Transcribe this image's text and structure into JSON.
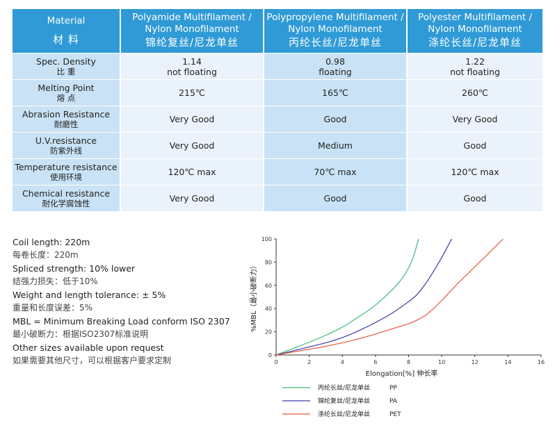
{
  "table": {
    "headers": [
      {
        "en": "Material",
        "cn": "材 料"
      },
      {
        "en": "Polyamide Multifilament / Nylon Monofilament",
        "cn": "锦纶复丝/尼龙单丝"
      },
      {
        "en": "Polypropylene  Multifilament / Nylon Monofilament",
        "cn": "丙纶长丝/尼龙单丝"
      },
      {
        "en": "Polyester Multifilament / Nylon Monofilament",
        "cn": "涤纶长丝/尼龙单丝"
      }
    ],
    "rows": [
      {
        "en": "Spec. Density",
        "cn": "比 重",
        "values": [
          [
            "1.14",
            "not floating"
          ],
          [
            "0.98",
            "floating"
          ],
          [
            "1.22",
            "not floating"
          ]
        ]
      },
      {
        "en": "Melting Point",
        "cn": "熔 点",
        "values": [
          [
            "215℃"
          ],
          [
            "165℃"
          ],
          [
            "260℃"
          ]
        ]
      },
      {
        "en": "Abrasion Resistance",
        "cn": "耐磨性",
        "values": [
          [
            "Very Good"
          ],
          [
            "Good"
          ],
          [
            "Very Good"
          ]
        ]
      },
      {
        "en": "U.V.resistance",
        "cn": "防紫外线",
        "values": [
          [
            "Very Good"
          ],
          [
            "Medium"
          ],
          [
            "Good"
          ]
        ]
      },
      {
        "en": "Temperature resistance",
        "cn": "使用环境",
        "values": [
          [
            "120℃ max"
          ],
          [
            "70℃ max"
          ],
          [
            "120℃ max"
          ]
        ]
      },
      {
        "en": "Chemical resistance",
        "cn": "耐化学腐蚀性",
        "values": [
          [
            "Very Good"
          ],
          [
            "Good"
          ],
          [
            "Good"
          ]
        ]
      }
    ]
  },
  "notes": [
    {
      "text": "Coil length: 220m",
      "lang": "en"
    },
    {
      "text": "每卷长度：220m",
      "lang": "cn"
    },
    {
      "text": "Spliced strength: 10% lower",
      "lang": "en"
    },
    {
      "text": "结强力损失：低于10%",
      "lang": "cn"
    },
    {
      "text": "Weight and length tolerance: ± 5%",
      "lang": "en"
    },
    {
      "text": "重量和长度误差：5%",
      "lang": "cn"
    },
    {
      "text": "MBL = Minimum Breaking Load conform ISO 2307",
      "lang": "en"
    },
    {
      "text": "最小破断力：根据ISO2307标准说明",
      "lang": "cn"
    },
    {
      "text": "Other sizes available upon request",
      "lang": "en"
    },
    {
      "text": "如果需要其他尺寸，可以根据客户要求定制",
      "lang": "cn"
    }
  ],
  "chart_data": {
    "type": "line",
    "xlabel": "Elongation[%]  伸长率",
    "ylabel": "%MBL（最小破断力）",
    "xlim": [
      0,
      16
    ],
    "ylim": [
      0,
      100
    ],
    "xticks": [
      0,
      2,
      4,
      6,
      8,
      10,
      12,
      14,
      16
    ],
    "yticks": [
      0,
      20,
      40,
      60,
      80,
      100
    ],
    "grid": false,
    "legend_position": "bottom",
    "series": [
      {
        "name": "PP",
        "legend_cn": "丙纶长丝/尼龙单丝",
        "color": "#3cb878",
        "x": [
          0,
          1,
          2,
          3,
          4,
          5,
          6,
          7,
          7.5,
          8,
          8.3,
          8.6
        ],
        "y": [
          0,
          5.5,
          11,
          17,
          24,
          33,
          43,
          56,
          64,
          75,
          85,
          100
        ]
      },
      {
        "name": "PA",
        "legend_cn": "锦纶复丝/尼龙单丝",
        "color": "#3a38a8",
        "x": [
          0,
          1,
          2,
          3,
          4,
          5,
          6,
          7,
          8,
          8.5,
          9,
          9.5,
          10,
          10.6
        ],
        "y": [
          0,
          3.5,
          7,
          10.5,
          15,
          21,
          28,
          36,
          46,
          52,
          61,
          72,
          84,
          100
        ]
      },
      {
        "name": "PET",
        "legend_cn": "涤纶长丝/尼龙单丝",
        "color": "#e8553a",
        "x": [
          0,
          1,
          2,
          3,
          4,
          5,
          6,
          7,
          8,
          8.5,
          9,
          9.5,
          10,
          11,
          12,
          13,
          13.7
        ],
        "y": [
          0,
          2.5,
          5,
          7.5,
          10.5,
          14,
          18,
          22.5,
          27,
          30,
          34,
          40,
          47,
          62,
          76,
          90,
          100
        ]
      }
    ]
  }
}
